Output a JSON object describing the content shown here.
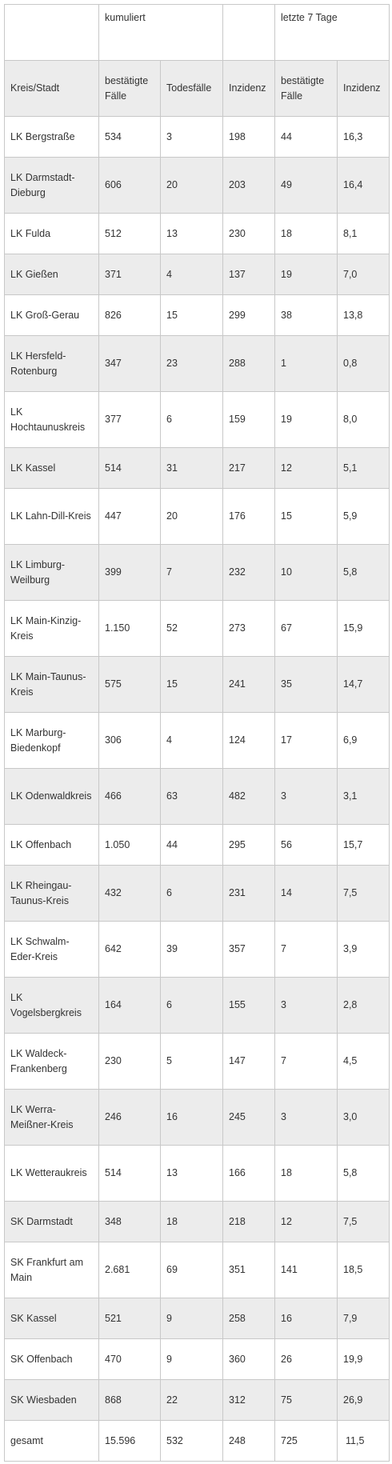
{
  "group_header": {
    "kumuliert": "kumuliert",
    "letzte7": "letzte 7 Tage"
  },
  "columns": [
    "Kreis/Stadt",
    "bestätigte Fälle",
    "Todesfälle",
    "Inzidenz",
    "bestätigte Fälle",
    "Inzidenz"
  ],
  "rows": [
    [
      "LK Bergstraße",
      "534",
      "3",
      "198",
      "44",
      "16,3"
    ],
    [
      "LK Darmstadt-Dieburg",
      "606",
      "20",
      "203",
      "49",
      "16,4"
    ],
    [
      "LK Fulda",
      "512",
      "13",
      "230",
      "18",
      "8,1"
    ],
    [
      "LK Gießen",
      "371",
      "4",
      "137",
      "19",
      "7,0"
    ],
    [
      "LK Groß-Gerau",
      "826",
      "15",
      "299",
      "38",
      "13,8"
    ],
    [
      "LK Hersfeld-Rotenburg",
      "347",
      "23",
      "288",
      "1",
      "0,8"
    ],
    [
      "LK Hochtaunuskreis",
      "377",
      "6",
      "159",
      "19",
      "8,0"
    ],
    [
      "LK Kassel",
      "514",
      "31",
      "217",
      "12",
      "5,1"
    ],
    [
      "LK Lahn-Dill-Kreis",
      "447",
      "20",
      "176",
      "15",
      "5,9"
    ],
    [
      "LK Limburg-Weilburg",
      "399",
      "7",
      "232",
      "10",
      "5,8"
    ],
    [
      "LK Main-Kinzig-Kreis",
      "1.150",
      "52",
      "273",
      "67",
      "15,9"
    ],
    [
      "LK Main-Taunus-Kreis",
      "575",
      "15",
      "241",
      "35",
      "14,7"
    ],
    [
      "LK Marburg-Biedenkopf",
      "306",
      "4",
      "124",
      "17",
      "6,9"
    ],
    [
      "LK Odenwaldkreis",
      "466",
      "63",
      "482",
      "3",
      "3,1"
    ],
    [
      "LK Offenbach",
      "1.050",
      "44",
      "295",
      "56",
      "15,7"
    ],
    [
      "LK Rheingau-Taunus-Kreis",
      "432",
      "6",
      "231",
      "14",
      "7,5"
    ],
    [
      "LK Schwalm-Eder-Kreis",
      "642",
      "39",
      "357",
      "7",
      "3,9"
    ],
    [
      "LK Vogelsbergkreis",
      "164",
      "6",
      "155",
      "3",
      "2,8"
    ],
    [
      "LK Waldeck-Frankenberg",
      "230",
      "5",
      "147",
      "7",
      "4,5"
    ],
    [
      "LK Werra-Meißner-Kreis",
      "246",
      "16",
      "245",
      "3",
      "3,0"
    ],
    [
      "LK Wetteraukreis",
      "514",
      "13",
      "166",
      "18",
      "5,8"
    ],
    [
      "SK Darmstadt",
      "348",
      "18",
      "218",
      "12",
      "7,5"
    ],
    [
      "SK Frankfurt am Main",
      "2.681",
      "69",
      "351",
      "141",
      "18,5"
    ],
    [
      "SK Kassel",
      "521",
      "9",
      "258",
      "16",
      "7,9"
    ],
    [
      "SK Offenbach",
      "470",
      "9",
      "360",
      "26",
      "19,9"
    ],
    [
      "SK Wiesbaden",
      "868",
      "22",
      "312",
      "75",
      "26,9"
    ],
    [
      "gesamt",
      "15.596",
      "532",
      "248",
      "725",
      "11,5"
    ]
  ]
}
